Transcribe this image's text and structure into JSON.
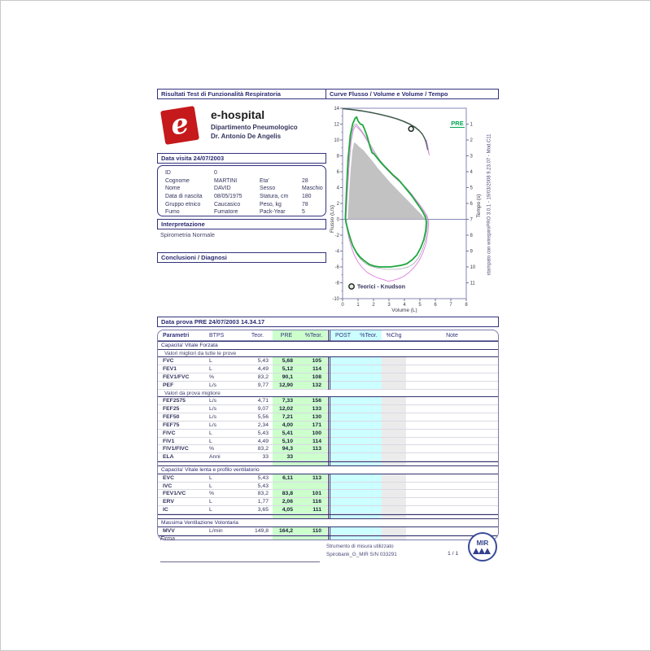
{
  "page": {
    "section_left_title": "Risultati Test di Funzionalità Respiratoria",
    "section_right_title": "Curve Flusso / Volume e Volume / Tempo",
    "print_note": "stampato con winspiroPRO 3.0.1 - 19/03/2008 9.23.07 - Mod.C11"
  },
  "clinic": {
    "name": "e-hospital",
    "logo_letter": "e",
    "department": "Dipartimento Pneumologico",
    "doctor": "Dr. Antonio De Angelis"
  },
  "visit": {
    "title": "Data visita 24/07/2003"
  },
  "patient": {
    "fields": [
      {
        "label": "ID",
        "value": "0",
        "label2": "",
        "value2": ""
      },
      {
        "label": "Cognome",
        "value": "MARTINI",
        "label2": "Eta'",
        "value2": "28"
      },
      {
        "label": "Nome",
        "value": "DAVID",
        "label2": "Sesso",
        "value2": "Maschio"
      },
      {
        "label": "Data di nascita",
        "value": "08/05/1975",
        "label2": "Statura, cm",
        "value2": "180"
      },
      {
        "label": "Gruppo etnico",
        "value": "Caucasico",
        "label2": "Peso, kg",
        "value2": "78"
      },
      {
        "label": "Fumo",
        "value": "Fumatore",
        "label2": "Pack-Year",
        "value2": "5"
      }
    ]
  },
  "interpretation": {
    "title": "Interpretazione",
    "text": "Spirometria Normale"
  },
  "conclusions": {
    "title": "Conclusioni / Diagnosi"
  },
  "chart_data": {
    "type": "line",
    "title": "Curve Flusso / Volume e Volume / Tempo",
    "xlabel": "Volume (L)",
    "ylabel_left": "Flusso (L/s)",
    "ylabel_right": "Tempo (s)",
    "xlim": [
      0,
      8
    ],
    "ylim_flusso": [
      -10,
      14
    ],
    "volume_ticks": [
      0,
      1,
      2,
      3,
      4,
      5,
      6,
      7,
      8
    ],
    "flusso_ticks": [
      14,
      12,
      10,
      8,
      6,
      4,
      2,
      0,
      -2,
      -4,
      -6,
      -8,
      -10
    ],
    "tempo_ticks": [
      1,
      2,
      3,
      4,
      5,
      6,
      7,
      8,
      9,
      10,
      11
    ],
    "pre_label": "PRE",
    "legend": "Teorici - Knudson",
    "marker": {
      "volume": 4.43,
      "flusso": 11.4
    },
    "series": [
      {
        "name": "teorico-knudson-area",
        "style": "area",
        "color": "#c2c2c2",
        "width": 0,
        "points": [
          [
            0.33,
            0
          ],
          [
            0.42,
            3.2
          ],
          [
            0.52,
            6.2
          ],
          [
            0.63,
            8.6
          ],
          [
            0.75,
            9.7
          ],
          [
            0.9,
            9.5
          ],
          [
            1.1,
            9.1
          ],
          [
            1.35,
            8.7
          ],
          [
            1.65,
            8.0
          ],
          [
            1.95,
            7.3
          ],
          [
            2.3,
            6.4
          ],
          [
            2.7,
            5.5
          ],
          [
            3.1,
            4.6
          ],
          [
            3.5,
            3.8
          ],
          [
            3.9,
            3.0
          ],
          [
            4.3,
            2.2
          ],
          [
            4.7,
            1.4
          ],
          [
            5.1,
            0.6
          ],
          [
            5.34,
            0.05
          ],
          [
            5.34,
            0
          ]
        ]
      },
      {
        "name": "flusso-volume-trial-gray",
        "style": "line",
        "color": "#9a9aa6",
        "width": 0.7,
        "points": [
          [
            0.2,
            0.2
          ],
          [
            0.3,
            4.5
          ],
          [
            0.45,
            8.8
          ],
          [
            0.6,
            11.0
          ],
          [
            0.75,
            11.9
          ],
          [
            0.9,
            12.0
          ],
          [
            1.05,
            11.6
          ],
          [
            1.25,
            11.1
          ],
          [
            1.5,
            10.4
          ],
          [
            1.8,
            9.4
          ],
          [
            2.1,
            8.4
          ],
          [
            2.4,
            7.5
          ],
          [
            2.7,
            6.8
          ],
          [
            3.0,
            6.2
          ],
          [
            3.3,
            5.6
          ],
          [
            3.6,
            5.0
          ],
          [
            3.9,
            4.4
          ],
          [
            4.2,
            3.8
          ],
          [
            4.5,
            3.1
          ],
          [
            4.8,
            2.3
          ],
          [
            5.1,
            1.5
          ],
          [
            5.35,
            0.7
          ],
          [
            5.5,
            0.0
          ],
          [
            5.46,
            -1.3
          ],
          [
            5.35,
            -2.7
          ],
          [
            5.15,
            -3.9
          ],
          [
            4.9,
            -4.9
          ],
          [
            4.6,
            -5.6
          ],
          [
            4.25,
            -6.0
          ],
          [
            3.9,
            -6.2
          ],
          [
            3.55,
            -6.3
          ],
          [
            3.2,
            -6.3
          ],
          [
            2.85,
            -6.3
          ],
          [
            2.5,
            -6.2
          ],
          [
            2.15,
            -6.1
          ],
          [
            1.8,
            -5.9
          ],
          [
            1.5,
            -5.6
          ],
          [
            1.2,
            -5.1
          ],
          [
            0.95,
            -4.5
          ],
          [
            0.72,
            -3.6
          ],
          [
            0.55,
            -2.6
          ],
          [
            0.4,
            -1.6
          ],
          [
            0.28,
            -0.6
          ],
          [
            0.2,
            0.2
          ]
        ]
      },
      {
        "name": "flusso-volume-trial-pink",
        "style": "line",
        "color": "#e08ae0",
        "width": 1,
        "points": [
          [
            0.22,
            0.2
          ],
          [
            0.3,
            3.0
          ],
          [
            0.42,
            6.8
          ],
          [
            0.55,
            9.8
          ],
          [
            0.7,
            11.3
          ],
          [
            0.85,
            11.8
          ],
          [
            1.0,
            11.5
          ],
          [
            1.2,
            11.1
          ],
          [
            1.4,
            10.5
          ],
          [
            1.65,
            9.7
          ],
          [
            1.9,
            8.8
          ],
          [
            2.15,
            8.0
          ],
          [
            2.45,
            7.2
          ],
          [
            2.75,
            6.5
          ],
          [
            3.05,
            5.9
          ],
          [
            3.35,
            5.3
          ],
          [
            3.65,
            4.8
          ],
          [
            3.95,
            4.2
          ],
          [
            4.25,
            3.6
          ],
          [
            4.55,
            2.9
          ],
          [
            4.85,
            2.2
          ],
          [
            5.15,
            1.4
          ],
          [
            5.45,
            0.5
          ],
          [
            5.57,
            -0.2
          ],
          [
            5.52,
            -1.6
          ],
          [
            5.4,
            -3.0
          ],
          [
            5.2,
            -4.2
          ],
          [
            4.95,
            -5.2
          ],
          [
            4.65,
            -6.0
          ],
          [
            4.3,
            -6.7
          ],
          [
            3.95,
            -7.2
          ],
          [
            3.6,
            -7.5
          ],
          [
            3.25,
            -7.7
          ],
          [
            2.95,
            -7.8
          ],
          [
            2.65,
            -7.6
          ],
          [
            2.3,
            -7.4
          ],
          [
            1.95,
            -7.1
          ],
          [
            1.6,
            -6.7
          ],
          [
            1.28,
            -6.1
          ],
          [
            1.0,
            -5.4
          ],
          [
            0.75,
            -4.5
          ],
          [
            0.55,
            -3.4
          ],
          [
            0.4,
            -2.3
          ],
          [
            0.28,
            -1.1
          ],
          [
            0.22,
            0.2
          ]
        ]
      },
      {
        "name": "flusso-volume-pre-green",
        "style": "line",
        "color": "#1ea83e",
        "width": 1.8,
        "points": [
          [
            0.18,
            0.2
          ],
          [
            0.25,
            3.5
          ],
          [
            0.35,
            7.5
          ],
          [
            0.5,
            10.6
          ],
          [
            0.65,
            12.0
          ],
          [
            0.8,
            12.7
          ],
          [
            0.9,
            12.9
          ],
          [
            1.0,
            12.4
          ],
          [
            1.15,
            12.0
          ],
          [
            1.3,
            11.9
          ],
          [
            1.45,
            11.2
          ],
          [
            1.6,
            10.4
          ],
          [
            1.75,
            9.3
          ],
          [
            1.9,
            8.4
          ],
          [
            2.05,
            8.2
          ],
          [
            2.25,
            7.7
          ],
          [
            2.5,
            7.1
          ],
          [
            2.75,
            6.6
          ],
          [
            3.0,
            6.1
          ],
          [
            3.25,
            5.6
          ],
          [
            3.5,
            5.2
          ],
          [
            3.75,
            4.7
          ],
          [
            4.0,
            4.1
          ],
          [
            4.25,
            3.5
          ],
          [
            4.5,
            2.9
          ],
          [
            4.75,
            2.2
          ],
          [
            5.0,
            1.5
          ],
          [
            5.2,
            0.9
          ],
          [
            5.35,
            0.3
          ],
          [
            5.42,
            -0.3
          ],
          [
            5.38,
            -1.4
          ],
          [
            5.25,
            -2.6
          ],
          [
            5.05,
            -3.6
          ],
          [
            4.8,
            -4.5
          ],
          [
            4.5,
            -5.1
          ],
          [
            4.15,
            -5.6
          ],
          [
            3.8,
            -5.8
          ],
          [
            3.45,
            -5.9
          ],
          [
            3.1,
            -6.0
          ],
          [
            2.75,
            -6.0
          ],
          [
            2.4,
            -6.0
          ],
          [
            2.05,
            -5.9
          ],
          [
            1.75,
            -5.7
          ],
          [
            1.45,
            -5.3
          ],
          [
            1.15,
            -4.8
          ],
          [
            0.9,
            -4.2
          ],
          [
            0.65,
            -3.3
          ],
          [
            0.48,
            -2.3
          ],
          [
            0.33,
            -1.3
          ],
          [
            0.22,
            -0.4
          ],
          [
            0.18,
            0.2
          ]
        ]
      },
      {
        "name": "volume-tempo-gray",
        "style": "line-time",
        "color": "#9a9aa6",
        "width": 0.7,
        "points": [
          [
            0.05,
            0.05
          ],
          [
            0.7,
            0.12
          ],
          [
            1.4,
            0.22
          ],
          [
            2.1,
            0.34
          ],
          [
            2.8,
            0.5
          ],
          [
            3.4,
            0.66
          ],
          [
            3.9,
            0.84
          ],
          [
            4.35,
            1.04
          ],
          [
            4.72,
            1.26
          ],
          [
            5.0,
            1.48
          ],
          [
            5.2,
            1.72
          ],
          [
            5.35,
            2.0
          ],
          [
            5.45,
            2.3
          ],
          [
            5.52,
            2.62
          ],
          [
            5.55,
            2.8
          ]
        ]
      },
      {
        "name": "volume-tempo-pre",
        "style": "line-time",
        "color": "#3c5a46",
        "width": 1.4,
        "points": [
          [
            0.02,
            0.02
          ],
          [
            0.6,
            0.08
          ],
          [
            1.2,
            0.16
          ],
          [
            1.8,
            0.26
          ],
          [
            2.4,
            0.38
          ],
          [
            3.0,
            0.52
          ],
          [
            3.5,
            0.66
          ],
          [
            3.95,
            0.82
          ],
          [
            4.35,
            1.0
          ],
          [
            4.7,
            1.2
          ],
          [
            4.95,
            1.4
          ],
          [
            5.15,
            1.62
          ],
          [
            5.3,
            1.88
          ],
          [
            5.4,
            2.15
          ],
          [
            5.47,
            2.42
          ],
          [
            5.5,
            2.6
          ]
        ]
      },
      {
        "name": "volume-tempo-tail-pink",
        "style": "line-time",
        "color": "#e08ae0",
        "width": 1,
        "points": [
          [
            5.42,
            2.0
          ],
          [
            5.52,
            2.45
          ],
          [
            5.6,
            2.95
          ]
        ]
      }
    ]
  },
  "test_table": {
    "header_bar": "Data prova PRE 24/07/2003   14.34.17",
    "columns": [
      "Parametri",
      "BTPS",
      "Teor.",
      "PRE",
      "%Teor.",
      "POST",
      "%Teor.",
      "%Chg",
      "Note"
    ],
    "groups": [
      {
        "section": "Capacita' Vitale Forzata",
        "subsection": "Valori migliori da tutte le prove",
        "rows": [
          [
            "FVC",
            "L",
            "5,43",
            "5,68",
            "105"
          ],
          [
            "FEV1",
            "L",
            "4,49",
            "5,12",
            "114"
          ],
          [
            "FEV1/FVC",
            "%",
            "83,2",
            "90,1",
            "108"
          ],
          [
            "PEF",
            "L/s",
            "9,77",
            "12,90",
            "132"
          ]
        ]
      },
      {
        "subsection": "Valori da prova migliore",
        "rows": [
          [
            "FEF2575",
            "L/s",
            "4,71",
            "7,33",
            "156"
          ],
          [
            "FEF25",
            "L/s",
            "9,07",
            "12,02",
            "133"
          ],
          [
            "FEF50",
            "L/s",
            "5,56",
            "7,21",
            "130"
          ],
          [
            "FEF75",
            "L/s",
            "2,34",
            "4,00",
            "171"
          ],
          [
            "FIVC",
            "L",
            "5,43",
            "5,41",
            "100"
          ],
          [
            "FIV1",
            "L",
            "4,49",
            "5,10",
            "114"
          ],
          [
            "FIV1/FIVC",
            "%",
            "83,2",
            "94,3",
            "113"
          ],
          [
            "ELA",
            "Anni",
            "33",
            "33",
            ""
          ]
        ]
      },
      {
        "section": "Capacita' Vitale lenta e profilo ventilatorio",
        "rows": [
          [
            "EVC",
            "L",
            "5,43",
            "6,11",
            "113"
          ],
          [
            "IVC",
            "L",
            "5,43",
            "",
            ""
          ],
          [
            "FEV1/VC",
            "%",
            "83,2",
            "83,8",
            "101"
          ],
          [
            "ERV",
            "L",
            "1,77",
            "2,06",
            "116"
          ],
          [
            "IC",
            "L",
            "3,65",
            "4,05",
            "111"
          ]
        ]
      },
      {
        "section": "Massima Ventilazione Volontaria",
        "rows": [
          [
            "MVV",
            "L/min",
            "149,8",
            "164,2",
            "110"
          ]
        ]
      }
    ]
  },
  "footer": {
    "signature_label": "Firma",
    "instrument_label": "Strumento di misura utilizzato",
    "instrument_value": "Spirobank_G_MIR S/N 033291",
    "page_number": "1 / 1",
    "logo_text": "MIR"
  },
  "colors": {
    "accent_navy": "#33337e",
    "green_curve": "#1ea83e",
    "pink_curve": "#e08ae0",
    "pre_green": "#00a651",
    "table_green": "#ccffcc",
    "table_cyan": "#ccffff",
    "logo_red": "#c5191c"
  }
}
